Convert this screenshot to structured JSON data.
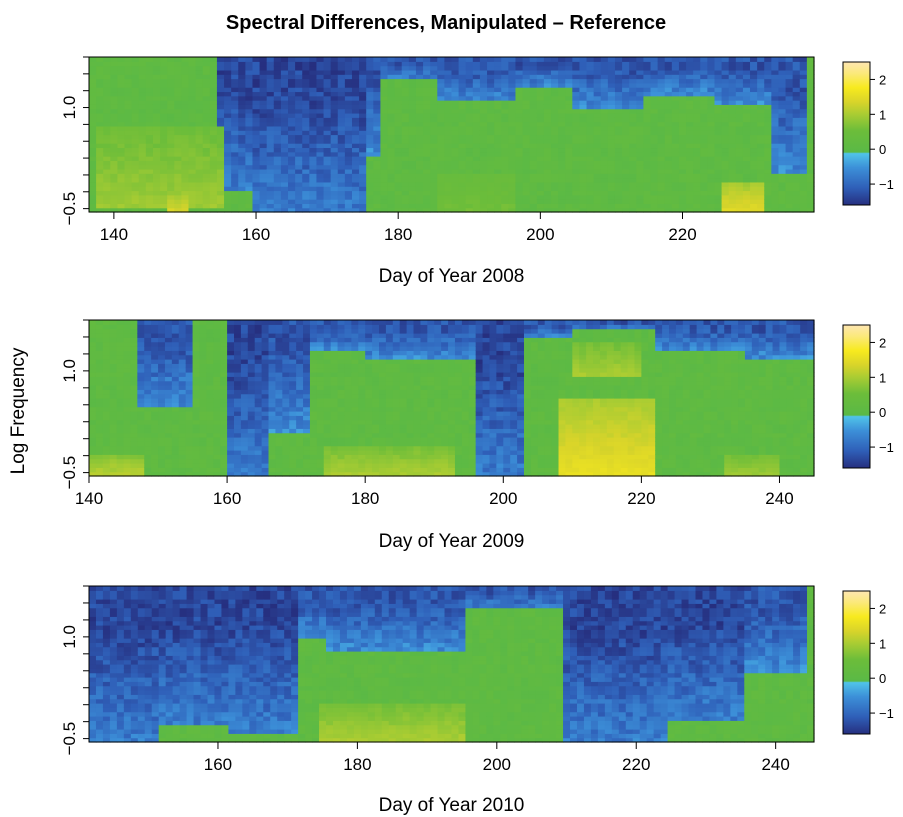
{
  "chart_data": {
    "type": "heatmap",
    "title": "Spectral Differences, Manipulated – Reference",
    "ylabel": "Log Frequency",
    "color_scale": {
      "range": [
        -1.6,
        2.5
      ],
      "tick_labels": [
        "−1",
        "0",
        "1",
        "2"
      ],
      "tick_values": [
        -1,
        0,
        1,
        2
      ],
      "colors": [
        "#262f7f",
        "#2f5fb8",
        "#3c8fd8",
        "#50c4e9",
        "#5ab946",
        "#6cbd3a",
        "#a7cc33",
        "#d8d42a",
        "#f7ea1e",
        "#fbe97a",
        "#fee6b2"
      ]
    },
    "panels": [
      {
        "xlabel": "Day of Year 2008",
        "xlim": [
          136.5,
          238.5
        ],
        "x_ticks": [
          140,
          160,
          180,
          200,
          220
        ],
        "x_tick_labels": [
          "140",
          "160",
          "180",
          "200",
          "220"
        ],
        "ylim": [
          -0.55,
          1.75
        ],
        "y_ticks": [
          -0.5,
          1.0
        ],
        "y_tick_labels": [
          "−0.5",
          "1.0"
        ],
        "blue_bands": [
          [
            155,
            160,
            -0.2
          ],
          [
            160,
            176,
            -0.55
          ],
          [
            176,
            178,
            0.3
          ],
          [
            178,
            186,
            1.4
          ],
          [
            186,
            197,
            1.1
          ],
          [
            197,
            205,
            1.3
          ],
          [
            205,
            215,
            1.0
          ],
          [
            215,
            225,
            1.2
          ],
          [
            225,
            233,
            1.05
          ],
          [
            233,
            238,
            0.0
          ]
        ],
        "warm_spots": [
          [
            138,
            156,
            -0.5,
            0.7,
            0.9
          ],
          [
            148,
            151,
            -0.55,
            -0.25,
            1.4
          ],
          [
            186,
            197,
            -0.55,
            0.0,
            0.6
          ],
          [
            226,
            232,
            -0.55,
            -0.1,
            1.5
          ]
        ]
      },
      {
        "xlabel": "Day of Year 2009",
        "xlim": [
          140,
          245
        ],
        "x_ticks": [
          140,
          160,
          180,
          200,
          220,
          240
        ],
        "x_tick_labels": [
          "140",
          "160",
          "180",
          "200",
          "220",
          "240"
        ],
        "ylim": [
          -0.55,
          1.75
        ],
        "y_ticks": [
          -0.5,
          1.0
        ],
        "y_tick_labels": [
          "−0.5",
          "1.0"
        ],
        "blue_bands": [
          [
            147,
            155,
            0.5
          ],
          [
            160,
            166,
            -0.55
          ],
          [
            166,
            172,
            0.1
          ],
          [
            172,
            180,
            1.3
          ],
          [
            180,
            196,
            1.2
          ],
          [
            196,
            203,
            -0.55
          ],
          [
            203,
            210,
            1.5
          ],
          [
            210,
            222,
            1.6
          ],
          [
            222,
            235,
            1.3
          ],
          [
            235,
            245,
            1.2
          ]
        ],
        "warm_spots": [
          [
            140,
            148,
            -0.55,
            -0.2,
            1.1
          ],
          [
            174,
            193,
            -0.55,
            -0.1,
            1.0
          ],
          [
            208,
            222,
            -0.55,
            0.6,
            1.6
          ],
          [
            210,
            220,
            0.9,
            1.4,
            1.0
          ],
          [
            232,
            240,
            -0.55,
            -0.2,
            0.9
          ]
        ]
      },
      {
        "xlabel": "Day of Year 2010",
        "xlim": [
          141.5,
          245.5
        ],
        "x_ticks": [
          160,
          180,
          200,
          220,
          240
        ],
        "x_tick_labels": [
          "160",
          "180",
          "200",
          "220",
          "240"
        ],
        "ylim": [
          -0.55,
          1.75
        ],
        "y_ticks": [
          -0.5,
          1.0
        ],
        "y_tick_labels": [
          "−0.5",
          "1.0"
        ],
        "blue_bands": [
          [
            142,
            152,
            -0.55
          ],
          [
            152,
            162,
            -0.3
          ],
          [
            162,
            172,
            -0.4
          ],
          [
            172,
            176,
            1.0
          ],
          [
            176,
            196,
            0.8
          ],
          [
            196,
            210,
            1.4
          ],
          [
            210,
            225,
            -0.55
          ],
          [
            225,
            236,
            -0.2
          ],
          [
            236,
            245,
            0.5
          ]
        ],
        "warm_spots": [
          [
            175,
            196,
            -0.55,
            0.0,
            1.0
          ]
        ]
      }
    ]
  }
}
